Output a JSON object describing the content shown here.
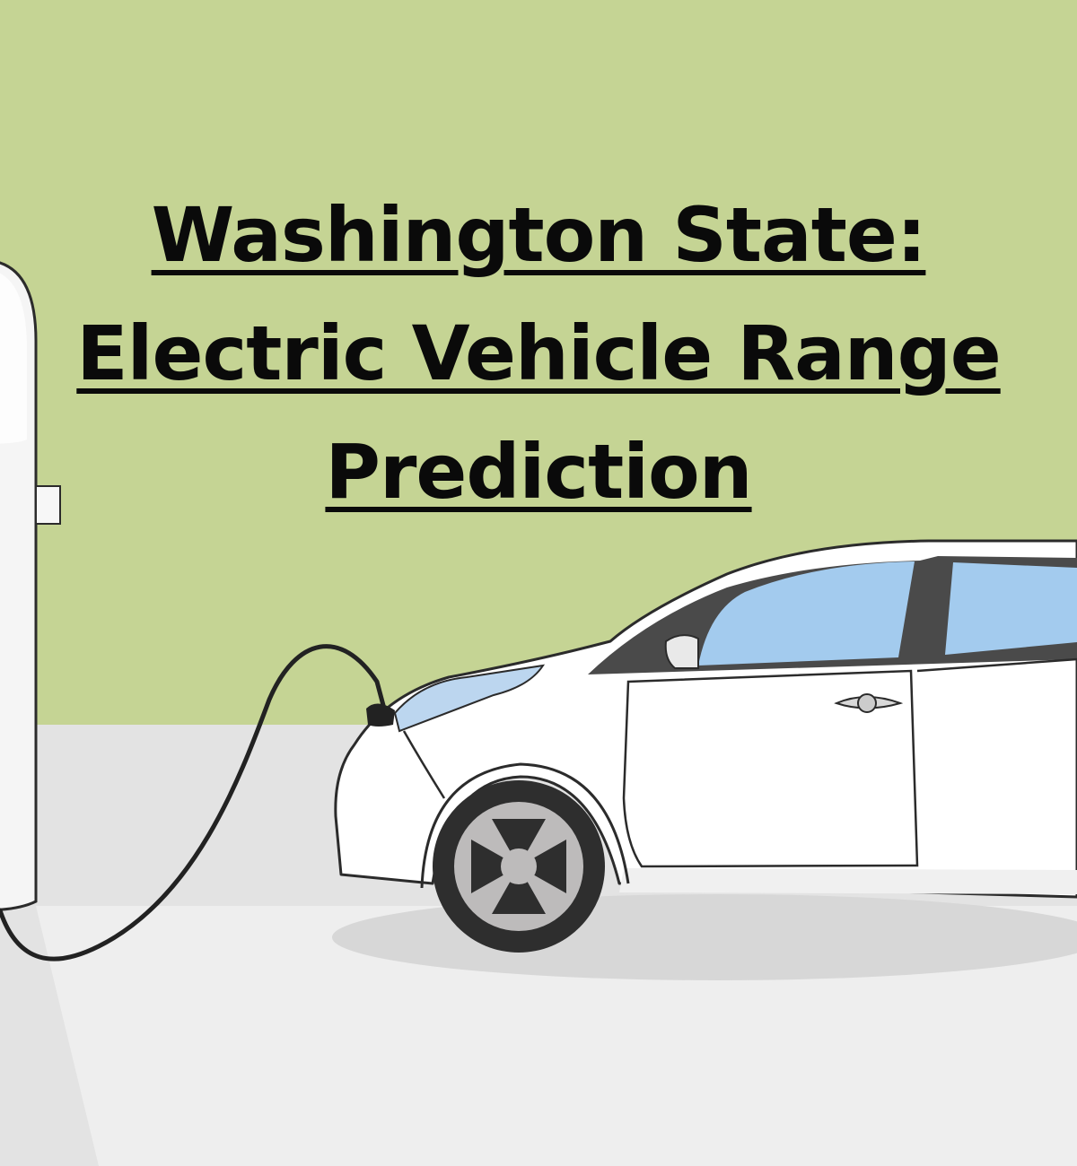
{
  "title": {
    "line1": "Washington State:",
    "line2": "Electric Vehicle Range",
    "line3": "Prediction"
  },
  "colors": {
    "wall": "#c5d494",
    "floor": "#e3e3e3",
    "car_body": "#ffffff",
    "window": "#a3cbee",
    "outline": "#2b2b2b",
    "tire": "#2e2e2e",
    "hubcap": "#bdbbbb"
  },
  "icons": {
    "charger": "charging-station-icon",
    "cable": "charging-cable-icon",
    "car": "electric-car-icon"
  }
}
